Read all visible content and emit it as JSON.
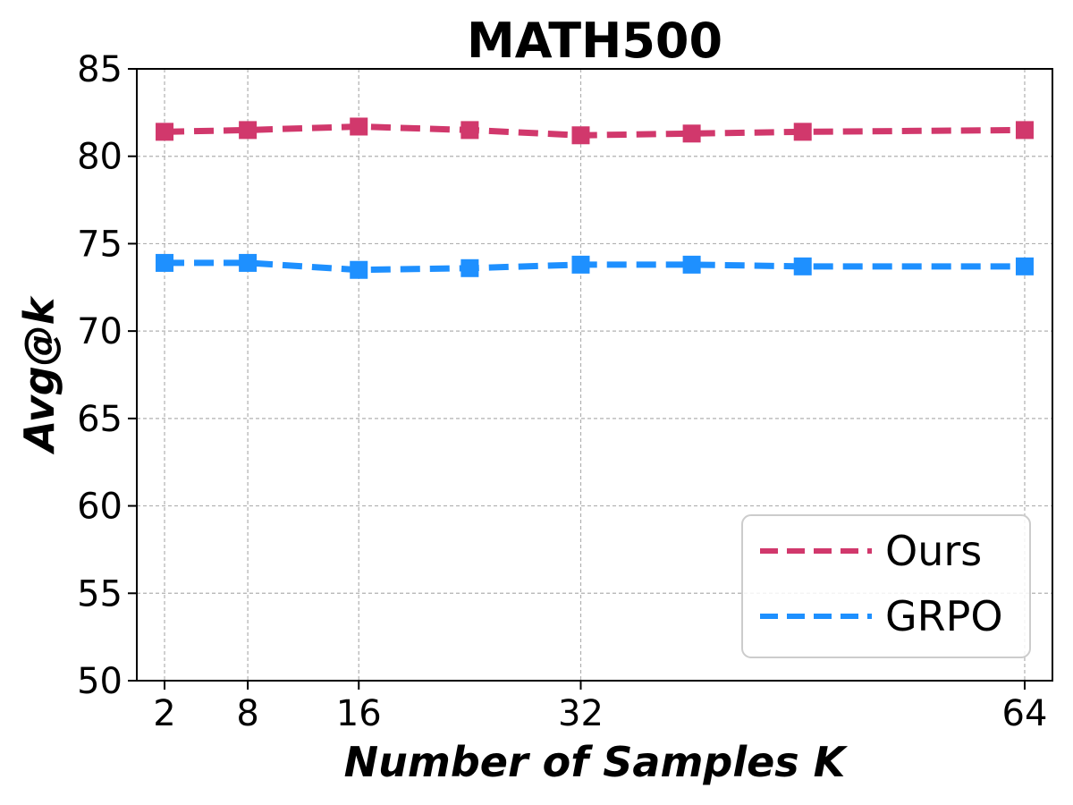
{
  "chart_data": {
    "type": "line",
    "title": "MATH500",
    "xlabel": "Number of Samples K",
    "ylabel": "Avg@k",
    "xlim": [
      0,
      66
    ],
    "ylim": [
      50,
      85
    ],
    "xticks": [
      2,
      8,
      16,
      32,
      64
    ],
    "yticks": [
      50,
      55,
      60,
      65,
      70,
      75,
      80,
      85
    ],
    "x": [
      2,
      8,
      16,
      24,
      32,
      40,
      48,
      64
    ],
    "grid": true,
    "legend_position": "lower-right",
    "series": [
      {
        "name": "Ours",
        "color": "#d1386c",
        "line_style": "dashed",
        "marker": "square",
        "values": [
          81.4,
          81.5,
          81.7,
          81.5,
          81.2,
          81.3,
          81.4,
          81.5
        ]
      },
      {
        "name": "GRPO",
        "color": "#1e90ff",
        "line_style": "dashed",
        "marker": "square",
        "values": [
          73.9,
          73.9,
          73.5,
          73.6,
          73.8,
          73.8,
          73.7,
          73.7
        ]
      }
    ]
  }
}
